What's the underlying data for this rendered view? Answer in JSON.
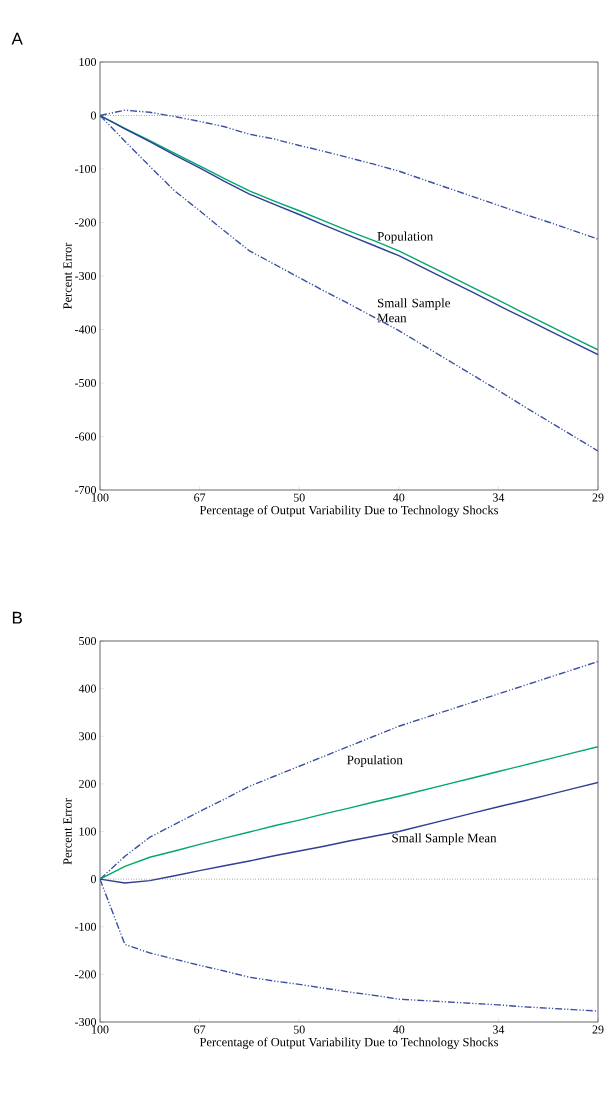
{
  "chart_data": [
    {
      "type": "line",
      "title": "A",
      "xlabel": "Percentage of Output Variability Due to Technology Shocks",
      "ylabel": "Percent Error",
      "categories": [
        "100",
        null,
        null,
        null,
        "67",
        null,
        null,
        null,
        "50",
        null,
        null,
        null,
        "40",
        null,
        null,
        null,
        "34",
        null,
        null,
        null,
        "29"
      ],
      "ylim": [
        -700,
        100
      ],
      "yticks": [
        -700,
        -600,
        -500,
        -400,
        -300,
        -200,
        -100,
        0,
        100
      ],
      "marker": "none",
      "series": [
        {
          "color": "#3a4fa0",
          "line_style": "dashdot",
          "values": [
            0,
            10,
            6,
            -2,
            -11,
            -21,
            -35,
            -44,
            -56,
            -67,
            -79,
            -91,
            -104,
            -120,
            -136,
            -152,
            -168,
            -184,
            -199,
            -215,
            -231
          ]
        },
        {
          "color": "#3a4fa0",
          "line_style": "dashdot",
          "values": [
            0,
            -48,
            -95,
            -141,
            -178,
            -216,
            -253,
            -278,
            -303,
            -328,
            -352,
            -377,
            -402,
            -430,
            -458,
            -486,
            -514,
            -543,
            -571,
            -599,
            -627
          ]
        },
        {
          "color": "#00a86b",
          "line_style": "solid",
          "values": [
            0,
            -24,
            -47,
            -71,
            -94,
            -118,
            -141,
            -160,
            -178,
            -197,
            -216,
            -234,
            -253,
            -276,
            -299,
            -322,
            -345,
            -369,
            -392,
            -415,
            -438
          ]
        },
        {
          "color": "#2e3f96",
          "line_style": "solid",
          "values": [
            0,
            -25,
            -49,
            -74,
            -98,
            -123,
            -147,
            -166,
            -185,
            -205,
            -224,
            -243,
            -262,
            -285,
            -308,
            -331,
            -355,
            -378,
            -401,
            -424,
            -447
          ]
        }
      ],
      "ref_lines": [
        {
          "axis": "y",
          "value": 0,
          "color": "#000000",
          "line_style": "dotted"
        }
      ],
      "annotations": [
        "Population",
        "Small Sample Mean"
      ]
    },
    {
      "type": "line",
      "title": "B",
      "xlabel": "Percentage of Output Variability Due to Technology Shocks",
      "ylabel": "Percent Error",
      "categories": [
        "100",
        null,
        null,
        null,
        "67",
        null,
        null,
        null,
        "50",
        null,
        null,
        null,
        "40",
        null,
        null,
        null,
        "34",
        null,
        null,
        null,
        "29"
      ],
      "ylim": [
        -300,
        500
      ],
      "yticks": [
        -300,
        -200,
        -100,
        0,
        100,
        200,
        300,
        400,
        500
      ],
      "marker": "none",
      "series": [
        {
          "color": "#3a4fa0",
          "line_style": "dashdot",
          "values": [
            0,
            48,
            88,
            115,
            142,
            168,
            195,
            216,
            237,
            258,
            279,
            300,
            321,
            338,
            355,
            372,
            389,
            406,
            423,
            440,
            457
          ]
        },
        {
          "color": "#3a4fa0",
          "line_style": "dashdot",
          "values": [
            0,
            -137,
            -155,
            -168,
            -181,
            -193,
            -206,
            -214,
            -221,
            -229,
            -237,
            -244,
            -252,
            -255,
            -258,
            -261,
            -264,
            -268,
            -271,
            -274,
            -277
          ]
        },
        {
          "color": "#00a86b",
          "line_style": "solid",
          "values": [
            0,
            27,
            46,
            59,
            73,
            86,
            99,
            112,
            124,
            137,
            149,
            162,
            174,
            187,
            200,
            213,
            226,
            239,
            252,
            265,
            278
          ]
        },
        {
          "color": "#2e3f96",
          "line_style": "solid",
          "values": [
            0,
            -8,
            -3,
            7,
            18,
            28,
            38,
            49,
            59,
            69,
            80,
            90,
            100,
            113,
            126,
            139,
            152,
            164,
            177,
            190,
            203
          ]
        }
      ],
      "ref_lines": [
        {
          "axis": "y",
          "value": 0,
          "color": "#000000",
          "line_style": "dotted"
        }
      ],
      "annotations": [
        "Population",
        "Small Sample Mean"
      ]
    }
  ]
}
